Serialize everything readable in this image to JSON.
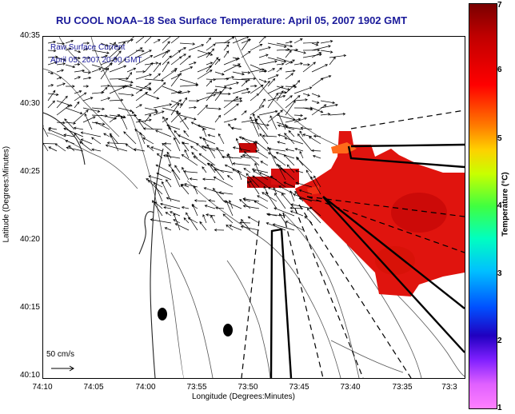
{
  "title": "RU COOL  NOAA–18  Sea Surface Temperature:  April 05, 2007 1902 GMT",
  "inset": {
    "line1": "Raw Surface Current",
    "line2": "April 05, 2007 20:00 GMT"
  },
  "y_axis": {
    "label": "Latitude (Degrees:Minutes)",
    "ticks": [
      "40:35",
      "40:30",
      "40:25",
      "40:20",
      "40:15",
      "40:10"
    ]
  },
  "x_axis": {
    "label": "Longitude (Degrees:Minutes)",
    "ticks": [
      "74:10",
      "74:05",
      "74:00",
      "73:55",
      "73:50",
      "73:45",
      "73:40",
      "73:35",
      "73:3"
    ]
  },
  "scale_bar": {
    "label": "50 cm/s"
  },
  "colorbar": {
    "label": "Temperature (°C)",
    "ticks": [
      "7",
      "6",
      "5",
      "4",
      "3",
      "2",
      "1"
    ],
    "min": 1,
    "max": 7
  },
  "colors": {
    "title": "#1a1a9a",
    "sst_hot": "#e0140e",
    "sst_mid": "#d80a08",
    "sst_orange": "#ff6a1a"
  }
}
